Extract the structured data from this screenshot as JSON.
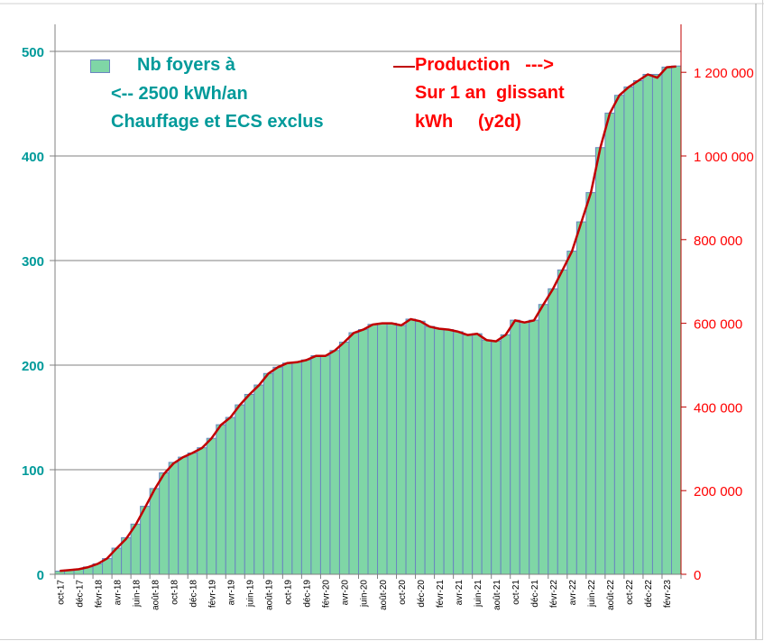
{
  "chart_data": {
    "type": "bar",
    "title": "",
    "legend": {
      "bars_lines": [
        "Nb foyers à",
        "<-- 2500 kWh/an",
        "Chauffage et ECS exclus"
      ],
      "line_lines": [
        "Production   --->",
        "Sur 1 an  glissant",
        "kWh     (y2d)"
      ],
      "placement": "top"
    },
    "colors": {
      "bars": "#7fd6a6",
      "bar_edge": "#6a86c0",
      "line": "#c00000",
      "left_axis": "#009a9a",
      "right_axis": "#ff0000"
    },
    "categories": [
      "oct-17",
      "nov-17",
      "déc-17",
      "janv-18",
      "févr-18",
      "mars-18",
      "avr-18",
      "mai-18",
      "juin-18",
      "juil-18",
      "août-18",
      "sept-18",
      "oct-18",
      "nov-18",
      "déc-18",
      "janv-19",
      "févr-19",
      "mars-19",
      "avr-19",
      "mai-19",
      "juin-19",
      "juil-19",
      "août-19",
      "sept-19",
      "oct-19",
      "nov-19",
      "déc-19",
      "janv-20",
      "févr-20",
      "mars-20",
      "avr-20",
      "mai-20",
      "juin-20",
      "juil-20",
      "août-20",
      "sept-20",
      "oct-20",
      "nov-20",
      "déc-20",
      "janv-21",
      "févr-21",
      "mars-21",
      "avr-21",
      "mai-21",
      "juin-21",
      "juil-21",
      "août-21",
      "sept-21",
      "oct-21",
      "nov-21",
      "déc-21",
      "janv-22",
      "févr-22",
      "mars-22",
      "avr-22",
      "mai-22",
      "juin-22",
      "juil-22",
      "août-22",
      "sept-22",
      "oct-22",
      "nov-22",
      "déc-22",
      "janv-23",
      "févr-23",
      "mars-23"
    ],
    "tick_labels": [
      "oct-17",
      "déc-17",
      "févr-18",
      "avr-18",
      "juin-18",
      "août-18",
      "oct-18",
      "déc-18",
      "févr-19",
      "avr-19",
      "juin-19",
      "août-19",
      "oct-19",
      "déc-19",
      "févr-20",
      "avr-20",
      "juin-20",
      "août-20",
      "oct-20",
      "déc-20",
      "févr-21",
      "avr-21",
      "juin-21",
      "août-21",
      "oct-21",
      "déc-21",
      "févr-22",
      "avr-22",
      "juin-22",
      "août-22",
      "oct-22",
      "déc-22",
      "févr-23"
    ],
    "series": [
      {
        "name": "Nb foyers à 2500 kWh/an",
        "axis": "left",
        "type": "bar",
        "values": [
          3,
          4,
          5,
          7,
          10,
          15,
          25,
          35,
          48,
          65,
          82,
          97,
          107,
          112,
          116,
          121,
          130,
          143,
          150,
          162,
          172,
          181,
          192,
          198,
          202,
          203,
          205,
          209,
          209,
          214,
          222,
          231,
          234,
          239,
          240,
          240,
          238,
          244,
          242,
          237,
          235,
          234,
          232,
          229,
          230,
          224,
          223,
          229,
          243,
          241,
          243,
          258,
          273,
          291,
          309,
          337,
          365,
          408,
          441,
          458,
          466,
          472,
          478,
          478,
          485,
          486
        ]
      },
      {
        "name": "Production sur 1 an glissant (kWh)",
        "axis": "right",
        "type": "line",
        "values": [
          8000,
          10000,
          12000,
          17000,
          25000,
          38000,
          62000,
          85000,
          118000,
          160000,
          203000,
          240000,
          265000,
          280000,
          290000,
          302000,
          325000,
          357000,
          375000,
          405000,
          430000,
          452000,
          480000,
          495000,
          505000,
          507000,
          512000,
          522000,
          522000,
          535000,
          555000,
          577000,
          585000,
          597000,
          600000,
          600000,
          595000,
          610000,
          605000,
          592000,
          587000,
          585000,
          580000,
          572000,
          575000,
          560000,
          557000,
          572000,
          607000,
          602000,
          607000,
          645000,
          682000,
          727000,
          772000,
          842000,
          912000,
          1020000,
          1102000,
          1145000,
          1165000,
          1180000,
          1195000,
          1187000,
          1212000,
          1214000
        ]
      }
    ],
    "yleft": {
      "ticks": [
        "0",
        "100",
        "200",
        "300",
        "400",
        "500"
      ],
      "range": [
        0,
        500
      ]
    },
    "yright": {
      "ticks": [
        "0",
        "200 000",
        "400 000",
        "600 000",
        "800 000",
        "1 000 000",
        "1 200 000"
      ],
      "range": [
        0,
        1250000
      ]
    },
    "grid": true
  }
}
